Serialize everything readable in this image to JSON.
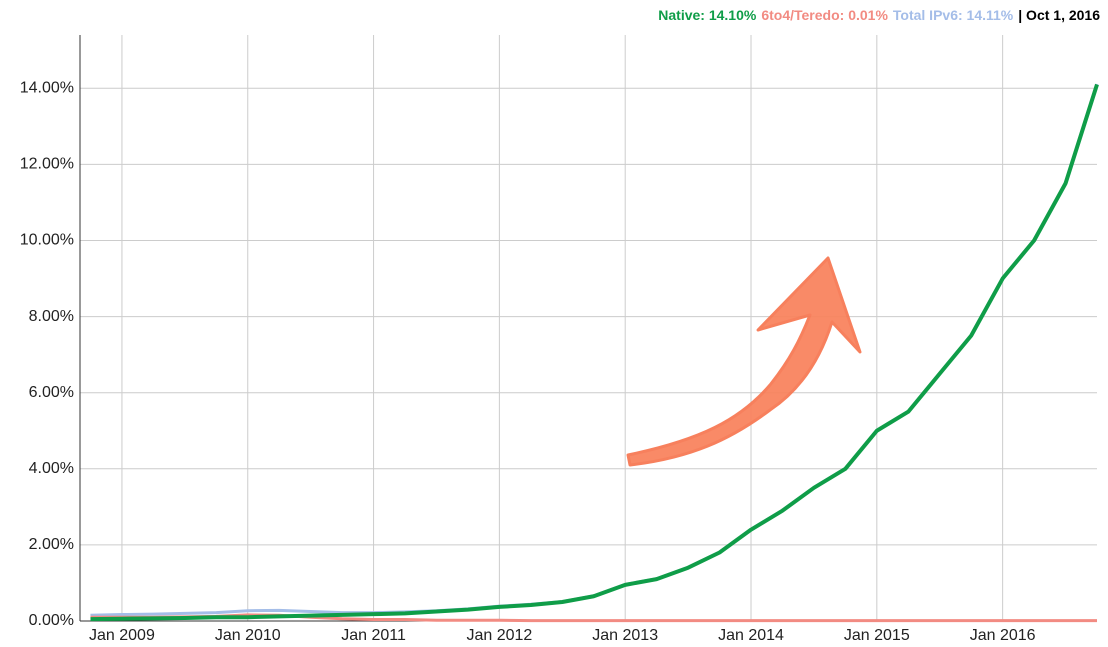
{
  "chart_data": {
    "type": "line",
    "annotations": [
      "| Oct 1, 2016"
    ],
    "x": [
      "2008-10",
      "2009-01",
      "2009-04",
      "2009-07",
      "2009-10",
      "2010-01",
      "2010-04",
      "2010-07",
      "2010-10",
      "2011-01",
      "2011-04",
      "2011-07",
      "2011-10",
      "2012-01",
      "2012-04",
      "2012-07",
      "2012-10",
      "2013-01",
      "2013-04",
      "2013-07",
      "2013-10",
      "2014-01",
      "2014-04",
      "2014-07",
      "2014-10",
      "2015-01",
      "2015-04",
      "2015-07",
      "2015-10",
      "2016-01",
      "2016-04",
      "2016-07",
      "2016-10"
    ],
    "series": [
      {
        "name": "Total IPv6: 14.11%",
        "color": "#a4bde8",
        "values": [
          0.15,
          0.17,
          0.18,
          0.2,
          0.22,
          0.27,
          0.28,
          0.25,
          0.22,
          0.22,
          0.24,
          0.27,
          0.32,
          0.39,
          0.44,
          0.51,
          0.66,
          0.96,
          1.11,
          1.41,
          1.81,
          2.41,
          2.91,
          3.51,
          4.01,
          5.01,
          5.51,
          6.51,
          7.51,
          9.01,
          10.01,
          11.51,
          14.11
        ]
      },
      {
        "name": "6to4/Teredo: 0.01%",
        "color": "#f28b82",
        "values": [
          0.1,
          0.1,
          0.1,
          0.11,
          0.12,
          0.16,
          0.15,
          0.1,
          0.06,
          0.04,
          0.04,
          0.02,
          0.02,
          0.02,
          0.01,
          0.01,
          0.01,
          0.01,
          0.01,
          0.01,
          0.01,
          0.01,
          0.01,
          0.01,
          0.01,
          0.01,
          0.01,
          0.01,
          0.01,
          0.01,
          0.01,
          0.01,
          0.01
        ]
      },
      {
        "name": "Native: 14.10%",
        "color": "#0f9d48",
        "values": [
          0.05,
          0.06,
          0.07,
          0.08,
          0.1,
          0.1,
          0.12,
          0.14,
          0.16,
          0.18,
          0.2,
          0.25,
          0.3,
          0.37,
          0.42,
          0.5,
          0.65,
          0.95,
          1.1,
          1.4,
          1.8,
          2.4,
          2.9,
          3.5,
          4.0,
          5.0,
          5.5,
          6.5,
          7.5,
          9.0,
          10.0,
          11.5,
          14.1
        ]
      }
    ],
    "xlim": [
      "2008-09",
      "2016-10"
    ],
    "xticks": [
      {
        "value": "2009-01",
        "label": "Jan 2009"
      },
      {
        "value": "2010-01",
        "label": "Jan 2010"
      },
      {
        "value": "2011-01",
        "label": "Jan 2011"
      },
      {
        "value": "2012-01",
        "label": "Jan 2012"
      },
      {
        "value": "2013-01",
        "label": "Jan 2013"
      },
      {
        "value": "2014-01",
        "label": "Jan 2014"
      },
      {
        "value": "2015-01",
        "label": "Jan 2015"
      },
      {
        "value": "2016-01",
        "label": "Jan 2016"
      }
    ],
    "ylim": [
      0,
      15.4
    ],
    "yticks": [
      {
        "value": 0,
        "label": "0.00%"
      },
      {
        "value": 2,
        "label": "2.00%"
      },
      {
        "value": 4,
        "label": "4.00%"
      },
      {
        "value": 6,
        "label": "6.00%"
      },
      {
        "value": 8,
        "label": "8.00%"
      },
      {
        "value": 10,
        "label": "10.00%"
      },
      {
        "value": 12,
        "label": "12.00%"
      },
      {
        "value": 14,
        "label": "14.00%"
      }
    ],
    "grid": true
  }
}
